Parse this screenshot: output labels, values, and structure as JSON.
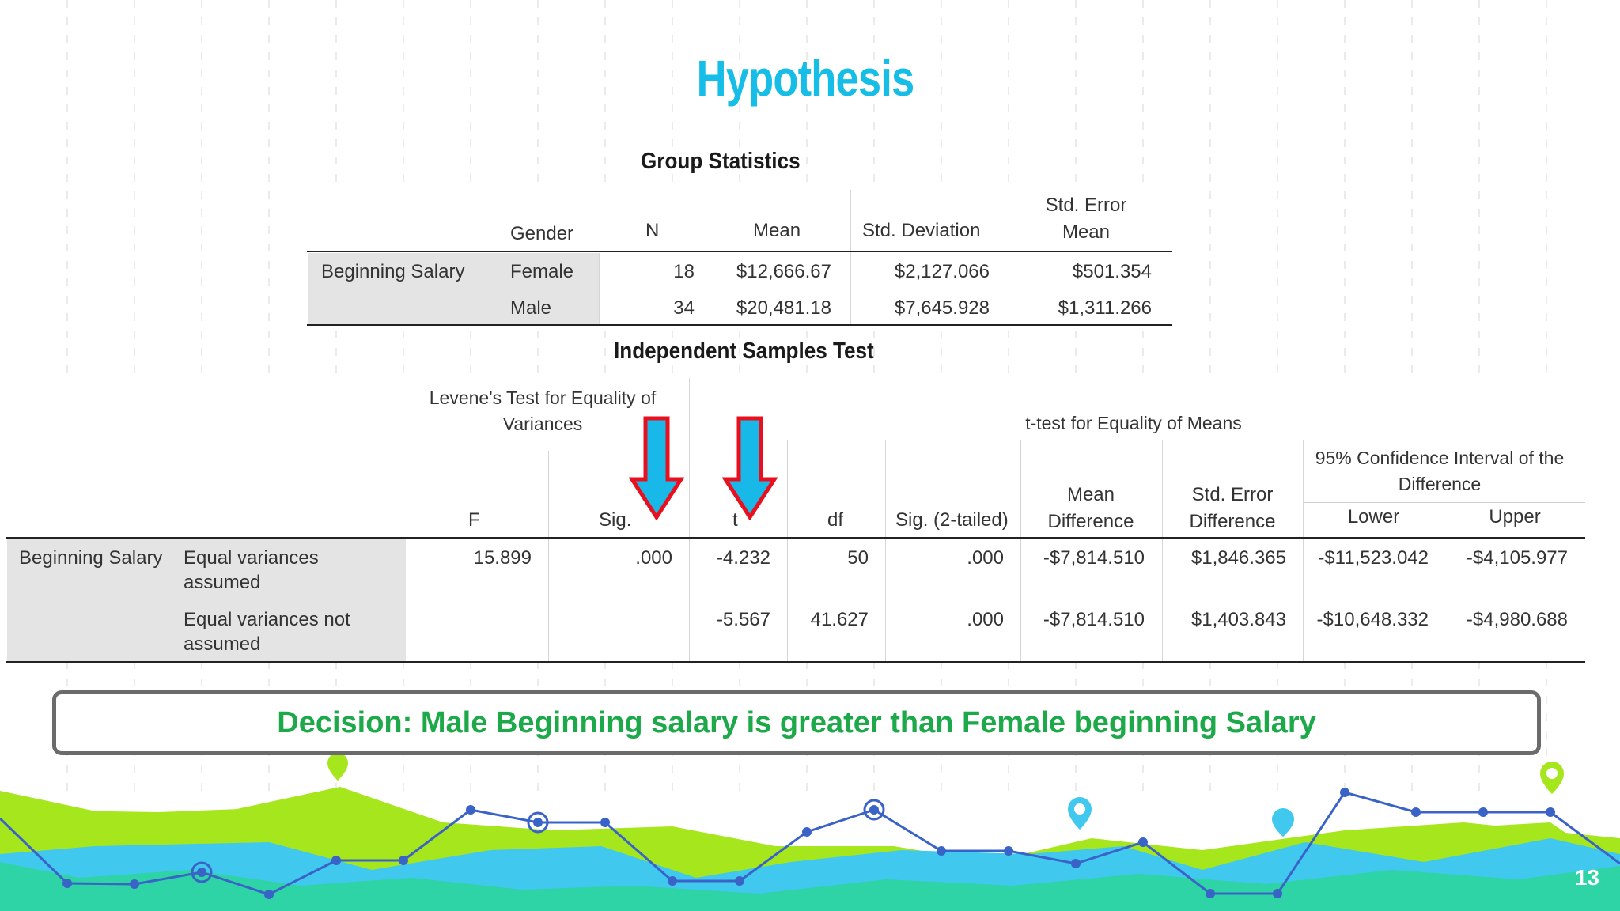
{
  "slide": {
    "title": "Hypothesis",
    "page_number": "13"
  },
  "group_statistics": {
    "title": "Group Statistics",
    "headers": {
      "gender": "Gender",
      "n": "N",
      "mean": "Mean",
      "std_dev": "Std. Deviation",
      "se_mean_1": "Std. Error",
      "se_mean_2": "Mean"
    },
    "variable": "Beginning Salary",
    "rows": [
      {
        "gender": "Female",
        "n": "18",
        "mean": "$12,666.67",
        "std_dev": "$2,127.066",
        "se_mean": "$501.354"
      },
      {
        "gender": "Male",
        "n": "34",
        "mean": "$20,481.18",
        "std_dev": "$7,645.928",
        "se_mean": "$1,311.266"
      }
    ]
  },
  "independent_test": {
    "title": "Independent Samples Test",
    "levene_header_1": "Levene's Test for Equality of",
    "levene_header_2": "Variances",
    "ttest_header": "t-test for Equality of Means",
    "ci_header_1": "95% Confidence Interval of the",
    "ci_header_2": "Difference",
    "cols": {
      "f": "F",
      "sig": "Sig.",
      "t": "t",
      "df": "df",
      "sig2": "Sig. (2-tailed)",
      "md_1": "Mean",
      "md_2": "Difference",
      "sed_1": "Std. Error",
      "sed_2": "Difference",
      "lower": "Lower",
      "upper": "Upper"
    },
    "variable": "Beginning Salary",
    "rows": [
      {
        "label_1": "Equal variances",
        "label_2": "assumed",
        "f": "15.899",
        "sig": ".000",
        "t": "-4.232",
        "df": "50",
        "sig2": ".000",
        "md": "-$7,814.510",
        "sed": "$1,846.365",
        "lower": "-$11,523.042",
        "upper": "-$4,105.977"
      },
      {
        "label_1": "Equal variances not",
        "label_2": "assumed",
        "f": "",
        "sig": "",
        "t": "-5.567",
        "df": "41.627",
        "sig2": ".000",
        "md": "-$7,814.510",
        "sed": "$1,403.843",
        "lower": "-$10,648.332",
        "upper": "-$4,980.688"
      }
    ]
  },
  "decision": "Decision: Male Beginning salary is greater than Female beginning Salary",
  "colors": {
    "title": "#16bde6",
    "decision_text": "#1da94a",
    "arrow_fill": "#18b8e8",
    "arrow_border": "#e8101e",
    "lime": "#a6e61c",
    "teal": "#2ed3a6",
    "sky": "#40c8ef",
    "line": "#3a63c8"
  }
}
